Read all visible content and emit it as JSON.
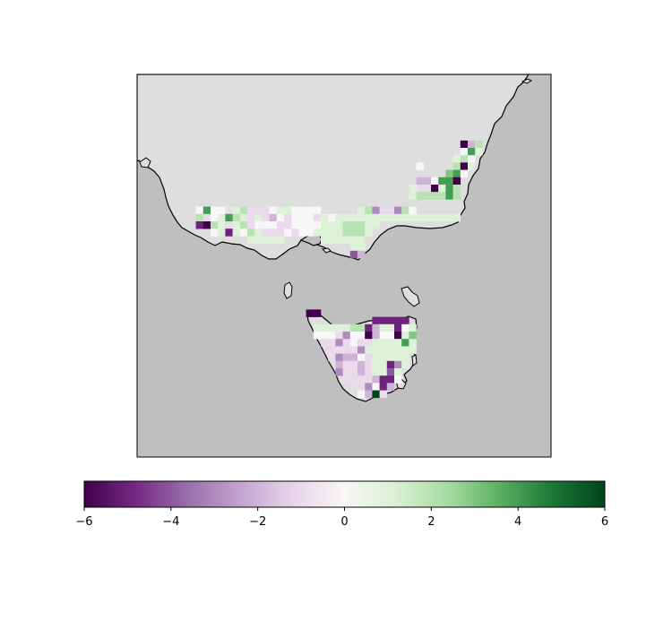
{
  "map": {
    "region": "South-east Australia and Tasmania",
    "ocean_color": "#bfbfbf",
    "land_color": "#dedede",
    "coastline_color": "#000000",
    "grid_cell_colors_by_value": {
      "-6": "#40004b",
      "-4": "#7b3294",
      "-2": "#c2a5cf",
      "0": "#f7f7f7",
      "2": "#a6dba0",
      "4": "#5aae61",
      "6": "#00441b"
    }
  },
  "colorbar": {
    "colormap": "PRGn",
    "range": [
      -6,
      6
    ],
    "ticks": [
      "−6",
      "−4",
      "−2",
      "0",
      "2",
      "4",
      "6"
    ]
  }
}
